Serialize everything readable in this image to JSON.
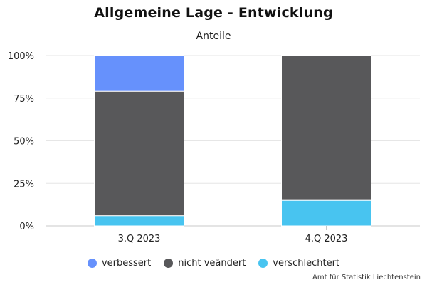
{
  "chart_data": {
    "type": "bar",
    "stacked": true,
    "title": "Allgemeine Lage - Entwicklung",
    "subtitle": "Anteile",
    "categories": [
      "3.Q 2023",
      "4.Q 2023"
    ],
    "series": [
      {
        "name": "verschlechtert",
        "color": "#48c4f0",
        "values": [
          6,
          15
        ]
      },
      {
        "name": "nicht veändert",
        "color": "#58585a",
        "values": [
          73,
          85
        ]
      },
      {
        "name": "verbessert",
        "color": "#6691fc",
        "values": [
          21,
          0
        ]
      }
    ],
    "legend_order": [
      "verbessert",
      "nicht veändert",
      "verschlechtert"
    ],
    "ylim": [
      0,
      100
    ],
    "yticks": [
      0,
      25,
      50,
      75,
      100
    ],
    "ytick_labels": [
      "0%",
      "25%",
      "50%",
      "75%",
      "100%"
    ],
    "grid": true,
    "legend_position": "bottom"
  },
  "credits": "Amt für Statistik Liechtenstein"
}
